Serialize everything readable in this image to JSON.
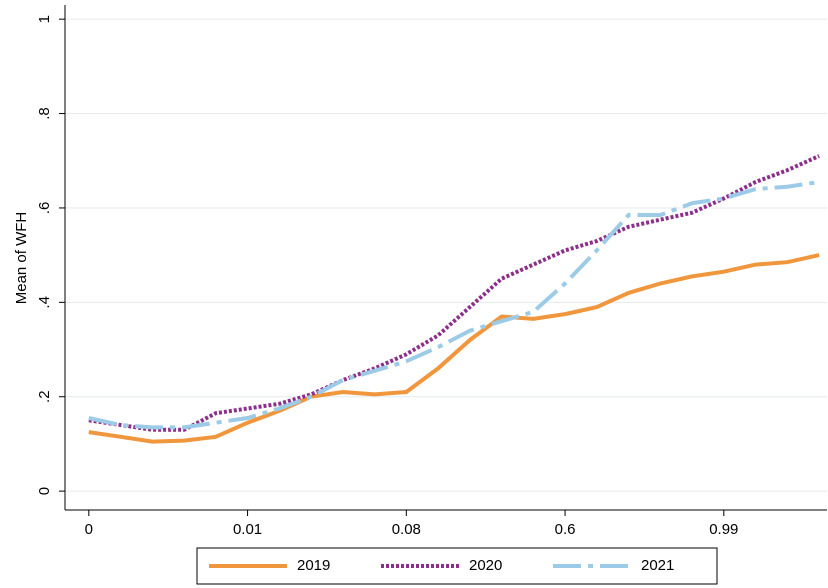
{
  "chart_data": {
    "type": "line",
    "y_label": "Mean of WFH",
    "x": [
      0,
      0.2,
      0.4,
      0.6,
      0.8,
      1.0,
      1.2,
      1.4,
      1.6,
      1.8,
      2.0,
      2.2,
      2.4,
      2.6,
      2.8,
      3.0,
      3.2,
      3.4,
      3.6,
      3.8,
      4.0,
      4.2,
      4.4,
      4.6
    ],
    "xlim": [
      -0.15,
      4.65
    ],
    "xticks": [
      0,
      {
        "value": 1,
        "label": "0.01"
      },
      {
        "value": 2,
        "label": "0.08"
      },
      {
        "value": 3,
        "label": "0.6"
      },
      {
        "value": 4,
        "label": "0.99"
      }
    ],
    "ylim": [
      -0.04,
      1.03
    ],
    "yticks": [
      0,
      {
        "value": 0.2,
        "label": ".2"
      },
      {
        "value": 0.4,
        "label": ".4"
      },
      {
        "value": 0.6,
        "label": ".6"
      },
      {
        "value": 0.8,
        "label": ".8"
      },
      1
    ],
    "grid": true,
    "legend": "bottom",
    "series": [
      {
        "name": "2019",
        "color": "#f0963c",
        "dash": "solid",
        "values": [
          0.125,
          0.115,
          0.105,
          0.107,
          0.115,
          0.145,
          0.17,
          0.2,
          0.21,
          0.205,
          0.21,
          0.26,
          0.32,
          0.37,
          0.365,
          0.375,
          0.39,
          0.42,
          0.44,
          0.455,
          0.465,
          0.48,
          0.485,
          0.5
        ]
      },
      {
        "name": "2020",
        "color": "#8b2f8b",
        "dash": "dotted",
        "values": [
          0.15,
          0.14,
          0.13,
          0.13,
          0.165,
          0.175,
          0.185,
          0.205,
          0.235,
          0.26,
          0.29,
          0.33,
          0.39,
          0.45,
          0.48,
          0.51,
          0.53,
          0.56,
          0.575,
          0.59,
          0.62,
          0.655,
          0.68,
          0.71
        ]
      },
      {
        "name": "2021",
        "color": "#9ccbe8",
        "dash": "dashed",
        "values": [
          0.155,
          0.14,
          0.135,
          0.135,
          0.145,
          0.155,
          0.175,
          0.2,
          0.235,
          0.255,
          0.275,
          0.305,
          0.34,
          0.36,
          0.38,
          0.44,
          0.51,
          0.585,
          0.585,
          0.61,
          0.62,
          0.64,
          0.645,
          0.655
        ]
      }
    ]
  }
}
